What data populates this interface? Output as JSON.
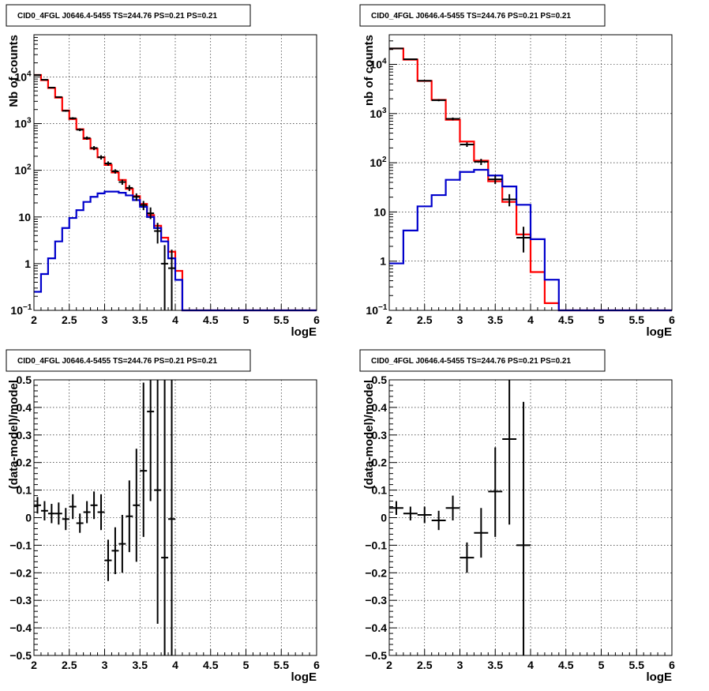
{
  "chart_data": [
    {
      "type": "line",
      "title": "CID0_4FGL J0646.4-5455 TS=244.76 PS=0.21 PS=0.21",
      "xlabel": "logE",
      "ylabel": "Nb of counts",
      "xlim": [
        2,
        6
      ],
      "ylim": [
        0.1,
        80000
      ],
      "yscale": "log",
      "grid": true,
      "x_ticks": [
        "2",
        "2.5",
        "3",
        "3.5",
        "4",
        "4.5",
        "5",
        "5.5",
        "6"
      ],
      "y_ticks": [
        {
          "value": 0.1,
          "label": "10",
          "exp": "−1"
        },
        {
          "value": 1,
          "label": "1",
          "exp": ""
        },
        {
          "value": 10,
          "label": "10",
          "exp": ""
        },
        {
          "value": 100,
          "label": "10",
          "exp": "2"
        },
        {
          "value": 1000,
          "label": "10",
          "exp": "3"
        },
        {
          "value": 10000,
          "label": "10",
          "exp": "4"
        }
      ],
      "bin_edges": [
        2.0,
        2.1,
        2.2,
        2.3,
        2.4,
        2.5,
        2.6,
        2.7,
        2.8,
        2.9,
        3.0,
        3.1,
        3.2,
        3.3,
        3.4,
        3.5,
        3.6,
        3.7,
        3.8,
        3.9,
        4.0,
        4.1,
        4.2,
        4.3,
        4.4,
        4.5,
        4.6,
        4.7,
        4.8,
        4.9,
        5.0,
        5.1,
        5.2,
        5.3,
        5.4,
        5.5,
        5.6,
        5.7,
        5.8,
        5.9,
        6.0
      ],
      "series": [
        {
          "color": "#ff0000",
          "kind": "hist",
          "values": [
            11000,
            8500,
            5800,
            3600,
            1900,
            1250,
            760,
            470,
            290,
            190,
            130,
            90,
            62,
            40,
            28,
            19,
            11,
            6.5,
            3.6,
            1.8,
            0.7,
            0.1,
            0.1,
            0.1,
            0.1,
            0.1,
            0.1,
            0.1,
            0.1,
            0.1,
            0.1,
            0.1,
            0.1,
            0.1,
            0.1,
            0.1,
            0.1,
            0.1,
            0.1,
            0.1
          ]
        },
        {
          "color": "#0000cc",
          "kind": "hist",
          "values": [
            0.25,
            0.6,
            1.3,
            3.0,
            5.8,
            9.5,
            14,
            21,
            27,
            32,
            35,
            35,
            33,
            29,
            23,
            16.5,
            10,
            5.8,
            3.0,
            1.3,
            0.45,
            0.1,
            0.1,
            0.1,
            0.1,
            0.1,
            0.1,
            0.1,
            0.1,
            0.1,
            0.1,
            0.1,
            0.1,
            0.1,
            0.1,
            0.1,
            0.1,
            0.1,
            0.1,
            0.1
          ]
        },
        {
          "color": "#000000",
          "kind": "errorbar",
          "points": [
            {
              "x": 2.05,
              "y": 11000,
              "ylo": 10800,
              "yhi": 11200
            },
            {
              "x": 2.15,
              "y": 8700,
              "ylo": 8500,
              "yhi": 8900
            },
            {
              "x": 2.25,
              "y": 5900,
              "ylo": 5750,
              "yhi": 6050
            },
            {
              "x": 2.35,
              "y": 3700,
              "ylo": 3580,
              "yhi": 3820
            },
            {
              "x": 2.45,
              "y": 1880,
              "ylo": 1800,
              "yhi": 1960
            },
            {
              "x": 2.55,
              "y": 1300,
              "ylo": 1230,
              "yhi": 1370
            },
            {
              "x": 2.65,
              "y": 740,
              "ylo": 690,
              "yhi": 790
            },
            {
              "x": 2.75,
              "y": 490,
              "ylo": 450,
              "yhi": 530
            },
            {
              "x": 2.85,
              "y": 300,
              "ylo": 270,
              "yhi": 330
            },
            {
              "x": 2.95,
              "y": 190,
              "ylo": 170,
              "yhi": 210
            },
            {
              "x": 3.05,
              "y": 140,
              "ylo": 125,
              "yhi": 155
            },
            {
              "x": 3.15,
              "y": 95,
              "ylo": 85,
              "yhi": 105
            },
            {
              "x": 3.25,
              "y": 56,
              "ylo": 49,
              "yhi": 63
            },
            {
              "x": 3.35,
              "y": 42,
              "ylo": 36,
              "yhi": 48
            },
            {
              "x": 3.45,
              "y": 27,
              "ylo": 22,
              "yhi": 32
            },
            {
              "x": 3.55,
              "y": 18,
              "ylo": 14,
              "yhi": 22
            },
            {
              "x": 3.65,
              "y": 12,
              "ylo": 9,
              "yhi": 16
            },
            {
              "x": 3.75,
              "y": 5,
              "ylo": 2.7,
              "yhi": 7.5
            },
            {
              "x": 3.85,
              "y": 1,
              "ylo": 0.1,
              "yhi": 2.5
            },
            {
              "x": 3.95,
              "y": 0.8,
              "ylo": 0.1,
              "yhi": 2.0
            }
          ]
        }
      ]
    },
    {
      "type": "line",
      "title": "CID0_4FGL J0646.4-5455 TS=244.76 PS=0.21 PS=0.21",
      "xlabel": "logE",
      "ylabel": "nb of counts",
      "xlim": [
        2,
        6
      ],
      "ylim": [
        0.1,
        40000
      ],
      "yscale": "log",
      "grid": true,
      "x_ticks": [
        "2",
        "2.5",
        "3",
        "3.5",
        "4",
        "4.5",
        "5",
        "5.5",
        "6"
      ],
      "y_ticks": [
        {
          "value": 0.1,
          "label": "10",
          "exp": "−1"
        },
        {
          "value": 1,
          "label": "1",
          "exp": ""
        },
        {
          "value": 10,
          "label": "10",
          "exp": ""
        },
        {
          "value": 100,
          "label": "10",
          "exp": "2"
        },
        {
          "value": 1000,
          "label": "10",
          "exp": "3"
        },
        {
          "value": 10000,
          "label": "10",
          "exp": "4"
        }
      ],
      "bin_edges": [
        2.0,
        2.2,
        2.4,
        2.6,
        2.8,
        3.0,
        3.2,
        3.4,
        3.6,
        3.8,
        4.0,
        4.2,
        4.4,
        4.6,
        4.8,
        5.0,
        5.2,
        5.4,
        5.6,
        5.8,
        6.0
      ],
      "series": [
        {
          "color": "#ff0000",
          "kind": "hist",
          "values": [
            21000,
            12500,
            4600,
            1900,
            750,
            270,
            110,
            42,
            16,
            3.5,
            0.6,
            0.14,
            0.1,
            0.1,
            0.1,
            0.1,
            0.1,
            0.1,
            0.1,
            0.1
          ]
        },
        {
          "color": "#0000cc",
          "kind": "hist",
          "values": [
            0.9,
            4.2,
            13,
            22,
            45,
            65,
            72,
            55,
            33,
            14,
            2.8,
            0.42,
            0.1,
            0.1,
            0.1,
            0.1,
            0.1,
            0.1,
            0.1,
            0.1
          ]
        },
        {
          "color": "#000000",
          "kind": "errorbar",
          "points": [
            {
              "x": 2.1,
              "y": 21000,
              "ylo": 20700,
              "yhi": 21300
            },
            {
              "x": 2.3,
              "y": 12700,
              "ylo": 12400,
              "yhi": 13000
            },
            {
              "x": 2.5,
              "y": 4650,
              "ylo": 4500,
              "yhi": 4800
            },
            {
              "x": 2.7,
              "y": 1870,
              "ylo": 1780,
              "yhi": 1960
            },
            {
              "x": 2.9,
              "y": 780,
              "ylo": 730,
              "yhi": 830
            },
            {
              "x": 3.1,
              "y": 235,
              "ylo": 210,
              "yhi": 260
            },
            {
              "x": 3.3,
              "y": 105,
              "ylo": 90,
              "yhi": 120
            },
            {
              "x": 3.5,
              "y": 46,
              "ylo": 37,
              "yhi": 55
            },
            {
              "x": 3.7,
              "y": 18,
              "ylo": 13,
              "yhi": 23
            },
            {
              "x": 3.9,
              "y": 3,
              "ylo": 1.5,
              "yhi": 5.0
            }
          ]
        }
      ]
    },
    {
      "type": "scatter",
      "title": "CID0_4FGL J0646.4-5455 TS=244.76 PS=0.21 PS=0.21",
      "xlabel": "logE",
      "ylabel": "(data-model)/model",
      "xlim": [
        2,
        6
      ],
      "ylim": [
        -0.5,
        0.5
      ],
      "grid": true,
      "x_ticks": [
        "2",
        "2.5",
        "3",
        "3.5",
        "4",
        "4.5",
        "5",
        "5.5",
        "6"
      ],
      "y_ticks": [
        "−0.5",
        "−0.4",
        "−0.3",
        "−0.2",
        "−0.1",
        "0",
        "0.1",
        "0.2",
        "0.3",
        "0.4",
        "0.5"
      ],
      "points": [
        {
          "x": 2.05,
          "y": 0.045,
          "ylo": 0.015,
          "yhi": 0.075,
          "xerr": 0.05
        },
        {
          "x": 2.15,
          "y": 0.025,
          "ylo": -0.01,
          "yhi": 0.06,
          "xerr": 0.05
        },
        {
          "x": 2.25,
          "y": 0.015,
          "ylo": -0.02,
          "yhi": 0.05,
          "xerr": 0.05
        },
        {
          "x": 2.35,
          "y": 0.015,
          "ylo": -0.025,
          "yhi": 0.055,
          "xerr": 0.05
        },
        {
          "x": 2.45,
          "y": -0.005,
          "ylo": -0.045,
          "yhi": 0.035,
          "xerr": 0.05
        },
        {
          "x": 2.55,
          "y": 0.04,
          "ylo": -0.005,
          "yhi": 0.085,
          "xerr": 0.05
        },
        {
          "x": 2.65,
          "y": -0.02,
          "ylo": -0.055,
          "yhi": 0.015,
          "xerr": 0.05
        },
        {
          "x": 2.75,
          "y": 0.02,
          "ylo": -0.02,
          "yhi": 0.06,
          "xerr": 0.05
        },
        {
          "x": 2.85,
          "y": 0.045,
          "ylo": -0.005,
          "yhi": 0.095,
          "xerr": 0.05
        },
        {
          "x": 2.95,
          "y": 0.02,
          "ylo": -0.045,
          "yhi": 0.085,
          "xerr": 0.05
        },
        {
          "x": 3.05,
          "y": -0.155,
          "ylo": -0.23,
          "yhi": -0.08,
          "xerr": 0.05
        },
        {
          "x": 3.15,
          "y": -0.12,
          "ylo": -0.205,
          "yhi": -0.035,
          "xerr": 0.05
        },
        {
          "x": 3.25,
          "y": -0.095,
          "ylo": -0.2,
          "yhi": 0.01,
          "xerr": 0.05
        },
        {
          "x": 3.35,
          "y": 0.005,
          "ylo": -0.125,
          "yhi": 0.135,
          "xerr": 0.05
        },
        {
          "x": 3.45,
          "y": 0.045,
          "ylo": -0.16,
          "yhi": 0.25,
          "xerr": 0.05
        },
        {
          "x": 3.55,
          "y": 0.17,
          "ylo": -0.07,
          "yhi": 0.49,
          "xerr": 0.05
        },
        {
          "x": 3.65,
          "y": 0.385,
          "ylo": 0.06,
          "yhi": 0.5,
          "xerr": 0.05
        },
        {
          "x": 3.75,
          "y": 0.1,
          "ylo": -0.385,
          "yhi": 0.5,
          "xerr": 0.05
        },
        {
          "x": 3.85,
          "y": -0.145,
          "ylo": -0.5,
          "yhi": 0.5,
          "xerr": 0.05
        },
        {
          "x": 3.95,
          "y": -0.005,
          "ylo": -0.5,
          "yhi": 0.5,
          "xerr": 0.05
        }
      ]
    },
    {
      "type": "scatter",
      "title": "CID0_4FGL J0646.4-5455 TS=244.76 PS=0.21 PS=0.21",
      "xlabel": "logE",
      "ylabel": "(data-model)/model",
      "xlim": [
        2,
        6
      ],
      "ylim": [
        -0.5,
        0.5
      ],
      "grid": true,
      "x_ticks": [
        "2",
        "2.5",
        "3",
        "3.5",
        "4",
        "4.5",
        "5",
        "5.5",
        "6"
      ],
      "y_ticks": [
        "−0.5",
        "−0.4",
        "−0.3",
        "−0.2",
        "−0.1",
        "0",
        "0.1",
        "0.2",
        "0.3",
        "0.4",
        "0.5"
      ],
      "points": [
        {
          "x": 2.1,
          "y": 0.035,
          "ylo": 0.01,
          "yhi": 0.06,
          "xerr": 0.1
        },
        {
          "x": 2.3,
          "y": 0.015,
          "ylo": -0.01,
          "yhi": 0.04,
          "xerr": 0.1
        },
        {
          "x": 2.5,
          "y": 0.01,
          "ylo": -0.02,
          "yhi": 0.04,
          "xerr": 0.1
        },
        {
          "x": 2.7,
          "y": -0.01,
          "ylo": -0.045,
          "yhi": 0.025,
          "xerr": 0.1
        },
        {
          "x": 2.9,
          "y": 0.035,
          "ylo": -0.01,
          "yhi": 0.08,
          "xerr": 0.1
        },
        {
          "x": 3.1,
          "y": -0.145,
          "ylo": -0.2,
          "yhi": -0.09,
          "xerr": 0.1
        },
        {
          "x": 3.3,
          "y": -0.055,
          "ylo": -0.145,
          "yhi": 0.035,
          "xerr": 0.1
        },
        {
          "x": 3.5,
          "y": 0.095,
          "ylo": -0.07,
          "yhi": 0.255,
          "xerr": 0.1
        },
        {
          "x": 3.7,
          "y": 0.285,
          "ylo": -0.025,
          "yhi": 0.5,
          "xerr": 0.1
        },
        {
          "x": 3.9,
          "y": -0.1,
          "ylo": -0.5,
          "yhi": 0.42,
          "xerr": 0.1
        }
      ]
    }
  ]
}
